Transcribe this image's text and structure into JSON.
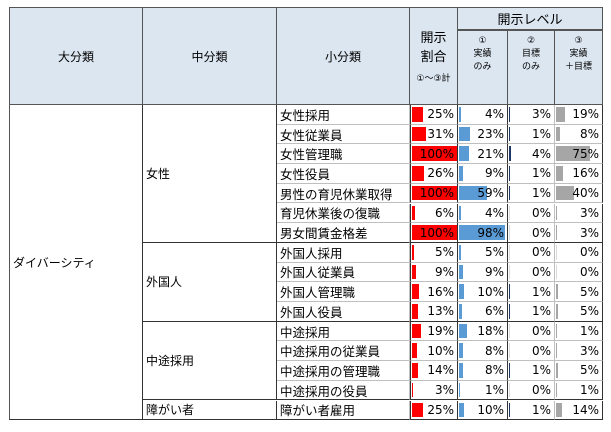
{
  "header": {
    "major": "大分類",
    "middle": "中分類",
    "minor": "小分類",
    "ratio_line1": "開示",
    "ratio_line2": "割合",
    "ratio_note": "①～③計",
    "level": "開示レベル",
    "level_cols": [
      {
        "num": "①",
        "l1": "実績",
        "l2": "のみ"
      },
      {
        "num": "②",
        "l1": "目標",
        "l2": "のみ"
      },
      {
        "num": "③",
        "l1": "実績",
        "l2": "＋目標"
      }
    ]
  },
  "colors": {
    "ratio": "#ff0000",
    "actual": "#5b9bd5",
    "target": "#1f3864",
    "both": "#a6a6a6",
    "header_bg": "#dce6f1"
  },
  "major": "ダイバーシティ",
  "groups": [
    {
      "name": "女性",
      "rows": [
        {
          "item": "女性採用",
          "ratio": 25,
          "actual": 4,
          "target": 3,
          "both": 19
        },
        {
          "item": "女性従業員",
          "ratio": 31,
          "actual": 23,
          "target": 1,
          "both": 8
        },
        {
          "item": "女性管理職",
          "ratio": 100,
          "actual": 21,
          "target": 4,
          "both": 75
        },
        {
          "item": "女性役員",
          "ratio": 26,
          "actual": 9,
          "target": 1,
          "both": 16
        },
        {
          "item": "男性の育児休業取得",
          "ratio": 100,
          "actual": 59,
          "target": 1,
          "both": 40
        },
        {
          "item": "育児休業後の復職",
          "ratio": 6,
          "actual": 4,
          "target": 0,
          "both": 3
        },
        {
          "item": "男女間賃金格差",
          "ratio": 100,
          "actual": 98,
          "target": 0,
          "both": 3
        }
      ]
    },
    {
      "name": "外国人",
      "rows": [
        {
          "item": "外国人採用",
          "ratio": 5,
          "actual": 5,
          "target": 0,
          "both": 0
        },
        {
          "item": "外国人従業員",
          "ratio": 9,
          "actual": 9,
          "target": 0,
          "both": 0
        },
        {
          "item": "外国人管理職",
          "ratio": 16,
          "actual": 10,
          "target": 1,
          "both": 5
        },
        {
          "item": "外国人役員",
          "ratio": 13,
          "actual": 6,
          "target": 1,
          "both": 5
        }
      ]
    },
    {
      "name": "中途採用",
      "rows": [
        {
          "item": "中途採用",
          "ratio": 19,
          "actual": 18,
          "target": 0,
          "both": 1
        },
        {
          "item": "中途採用の従業員",
          "ratio": 10,
          "actual": 8,
          "target": 0,
          "both": 3
        },
        {
          "item": "中途採用の管理職",
          "ratio": 14,
          "actual": 8,
          "target": 1,
          "both": 5
        },
        {
          "item": "中途採用の役員",
          "ratio": 3,
          "actual": 1,
          "target": 0,
          "both": 1
        }
      ]
    },
    {
      "name": "障がい者",
      "rows": [
        {
          "item": "障がい者雇用",
          "ratio": 25,
          "actual": 10,
          "target": 1,
          "both": 14
        }
      ]
    }
  ]
}
